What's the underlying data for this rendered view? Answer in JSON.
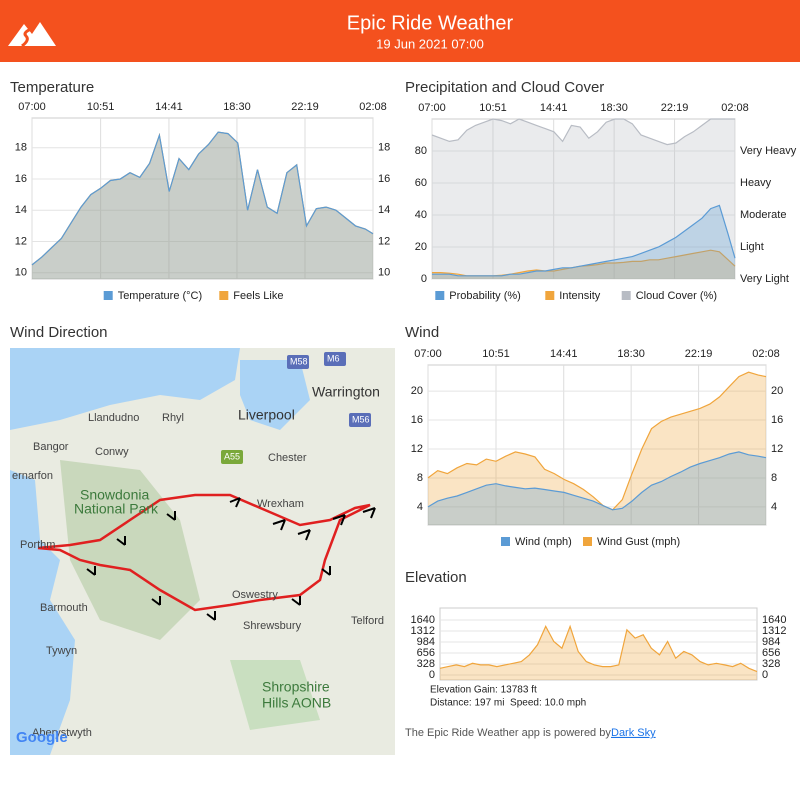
{
  "header": {
    "title": "Epic Ride Weather",
    "subtitle": "19 Jun 2021 07:00"
  },
  "chart_data": [
    {
      "type": "area",
      "title": "Temperature",
      "x": [
        "07:00",
        "07:33",
        "08:06",
        "08:39",
        "09:12",
        "09:45",
        "10:18",
        "10:51",
        "11:24",
        "11:57",
        "12:30",
        "13:03",
        "13:36",
        "14:09",
        "14:42",
        "15:15",
        "15:48",
        "16:21",
        "16:54",
        "17:27",
        "18:00",
        "18:33",
        "19:06",
        "19:39",
        "20:12",
        "20:45",
        "21:18",
        "21:51",
        "22:24",
        "22:57",
        "23:30",
        "00:03",
        "00:36",
        "01:09",
        "01:42",
        "02:08"
      ],
      "xlim": [
        "07:00",
        "02:08"
      ],
      "xticks": [
        "07:00",
        "10:51",
        "14:41",
        "18:30",
        "22:19",
        "02:08"
      ],
      "ylim": [
        9.6,
        19.9
      ],
      "yticks": [
        10,
        12,
        14,
        16,
        18
      ],
      "grid": true,
      "mirror_yticks": true,
      "series": [
        {
          "name": "Temperature (°C)",
          "color": "#5b9bd5",
          "values": [
            10.5,
            11.0,
            11.6,
            12.2,
            13.2,
            14.2,
            15.0,
            15.4,
            15.9,
            16.0,
            16.4,
            16.1,
            17.0,
            18.8,
            15.2,
            17.3,
            16.6,
            17.6,
            18.2,
            19.0,
            18.9,
            18.3,
            14.0,
            16.6,
            14.2,
            13.8,
            16.4,
            16.9,
            13.0,
            14.1,
            14.2,
            14.0,
            13.5,
            13.0,
            12.8,
            12.5
          ]
        },
        {
          "name": "Feels Like",
          "color": "#f0a53c",
          "values": [
            10.5,
            11.0,
            11.6,
            12.2,
            13.2,
            14.2,
            15.0,
            15.4,
            15.9,
            16.0,
            16.4,
            16.1,
            17.0,
            18.8,
            15.2,
            17.3,
            16.6,
            17.6,
            18.2,
            19.0,
            18.9,
            18.3,
            14.0,
            16.6,
            14.2,
            13.8,
            16.4,
            16.9,
            13.0,
            14.1,
            14.2,
            14.0,
            13.5,
            13.0,
            12.8,
            12.5
          ]
        }
      ]
    },
    {
      "type": "area",
      "title": "Precipitation and Cloud Cover",
      "x": [
        "07:00",
        "07:33",
        "08:06",
        "08:39",
        "09:12",
        "09:45",
        "10:18",
        "10:51",
        "11:24",
        "11:57",
        "12:30",
        "13:03",
        "13:36",
        "14:09",
        "14:42",
        "15:15",
        "15:48",
        "16:21",
        "16:54",
        "17:27",
        "18:00",
        "18:33",
        "19:06",
        "19:39",
        "20:12",
        "20:45",
        "21:18",
        "21:51",
        "22:24",
        "22:57",
        "23:30",
        "00:03",
        "00:36",
        "01:09",
        "01:42",
        "02:08"
      ],
      "xlim": [
        "07:00",
        "02:08"
      ],
      "xticks": [
        "07:00",
        "10:51",
        "14:41",
        "18:30",
        "22:19",
        "02:08"
      ],
      "ylim": [
        0,
        100
      ],
      "yticks": [
        0,
        20,
        40,
        60,
        80
      ],
      "grid": true,
      "y2lim": [
        0,
        5
      ],
      "y2ticks": [
        {
          "value": 0,
          "label": "Very Light"
        },
        {
          "value": 1,
          "label": "Light"
        },
        {
          "value": 2,
          "label": "Moderate"
        },
        {
          "value": 3,
          "label": "Heavy"
        },
        {
          "value": 4,
          "label": "Very Heavy"
        }
      ],
      "series": [
        {
          "name": "Probability (%)",
          "color": "#5b9bd5",
          "values": [
            3,
            3,
            3,
            2,
            2,
            2,
            2,
            2,
            2,
            3,
            3,
            4,
            5,
            5,
            6,
            7,
            7,
            8,
            9,
            10,
            11,
            12,
            13,
            14,
            16,
            18,
            20,
            23,
            26,
            30,
            34,
            38,
            44,
            46,
            28,
            13
          ]
        },
        {
          "name": "Intensity",
          "color": "#f0a53c",
          "axis": "y2",
          "values": [
            0.2,
            0.2,
            0.18,
            0.15,
            0.1,
            0.1,
            0.1,
            0.1,
            0.12,
            0.15,
            0.2,
            0.25,
            0.28,
            0.25,
            0.25,
            0.3,
            0.35,
            0.4,
            0.42,
            0.45,
            0.5,
            0.5,
            0.52,
            0.55,
            0.55,
            0.6,
            0.6,
            0.65,
            0.7,
            0.75,
            0.8,
            0.85,
            0.9,
            0.85,
            0.6,
            0.4
          ]
        },
        {
          "name": "Cloud Cover (%)",
          "color": "#b8bcc4",
          "values": [
            90,
            88,
            86,
            87,
            93,
            96,
            98,
            100,
            99,
            97,
            100,
            98,
            96,
            94,
            92,
            86,
            96,
            95,
            88,
            92,
            98,
            100,
            100,
            97,
            90,
            88,
            86,
            84,
            85,
            89,
            92,
            96,
            100,
            100,
            100,
            100
          ]
        }
      ]
    },
    {
      "type": "area",
      "title": "Wind",
      "x": [
        "07:00",
        "07:33",
        "08:06",
        "08:39",
        "09:12",
        "09:45",
        "10:18",
        "10:51",
        "11:24",
        "11:57",
        "12:30",
        "13:03",
        "13:36",
        "14:09",
        "14:42",
        "15:15",
        "15:48",
        "16:21",
        "16:54",
        "17:27",
        "18:00",
        "18:33",
        "19:06",
        "19:39",
        "20:12",
        "20:45",
        "21:18",
        "21:51",
        "22:24",
        "22:57",
        "23:30",
        "00:03",
        "00:36",
        "01:09",
        "01:42",
        "02:08"
      ],
      "xlim": [
        "07:00",
        "02:08"
      ],
      "xticks": [
        "07:00",
        "10:51",
        "14:41",
        "18:30",
        "22:19",
        "02:08"
      ],
      "ylim": [
        1.5,
        23.6
      ],
      "yticks": [
        4,
        8,
        12,
        16,
        20
      ],
      "grid": true,
      "mirror_yticks": true,
      "series": [
        {
          "name": "Wind (mph)",
          "color": "#5b9bd5",
          "values": [
            4.0,
            4.8,
            5.2,
            5.5,
            6.0,
            6.5,
            7.0,
            7.2,
            6.9,
            6.7,
            6.5,
            6.6,
            6.4,
            6.2,
            6.0,
            5.6,
            5.2,
            4.8,
            4.2,
            3.6,
            3.8,
            4.8,
            6.0,
            7.0,
            7.5,
            8.2,
            8.8,
            9.5,
            10.0,
            10.4,
            10.8,
            11.3,
            11.6,
            11.2,
            11.0,
            10.8
          ]
        },
        {
          "name": "Wind Gust (mph)",
          "color": "#f0a53c",
          "values": [
            8.0,
            9.0,
            8.6,
            9.4,
            10.0,
            9.8,
            10.6,
            10.3,
            11.0,
            11.6,
            11.3,
            10.9,
            9.2,
            8.6,
            7.8,
            7.2,
            6.4,
            5.4,
            4.2,
            3.6,
            5.0,
            8.6,
            12.0,
            14.8,
            15.8,
            16.4,
            16.8,
            17.2,
            17.6,
            18.2,
            19.2,
            20.6,
            22.0,
            22.6,
            22.2,
            22.0
          ]
        }
      ]
    },
    {
      "type": "area",
      "title": "Elevation",
      "ylim": [
        -150,
        2000
      ],
      "yticks": [
        0,
        328,
        656,
        984,
        1312,
        1640
      ],
      "grid": true,
      "mirror_yticks": true,
      "series": [
        {
          "color": "#f0a53c",
          "values": [
            200,
            250,
            300,
            250,
            350,
            300,
            300,
            250,
            300,
            350,
            400,
            600,
            900,
            1450,
            1000,
            800,
            1450,
            700,
            400,
            300,
            250,
            250,
            300,
            1350,
            1100,
            1200,
            800,
            600,
            1000,
            500,
            700,
            600,
            400,
            300,
            350,
            300,
            250,
            350,
            200,
            100
          ]
        }
      ]
    }
  ],
  "map": {
    "title": "Wind Direction",
    "labels": [
      "M58",
      "M6",
      "Warrington",
      "Llandudno",
      "Rhyl",
      "Liverpool",
      "M56",
      "Bangor",
      "Conwy",
      "A55",
      "Chester",
      "ernarfon",
      "Snowdonia",
      "National Park",
      "Wrexham",
      "Porthm",
      "Oswestry",
      "Barmouth",
      "Telford",
      "Shrewsbury",
      "Tywyn",
      "Shropshire",
      "Hills AONB",
      "Aberystwyth",
      "Google"
    ]
  },
  "elevation_stats": [
    "Elevation Gain: 13783 ft",
    "Distance: 197 mi  Speed: 10.0 mph"
  ],
  "footer": {
    "text": "The Epic Ride Weather app is powered by",
    "link": "Dark Sky"
  }
}
